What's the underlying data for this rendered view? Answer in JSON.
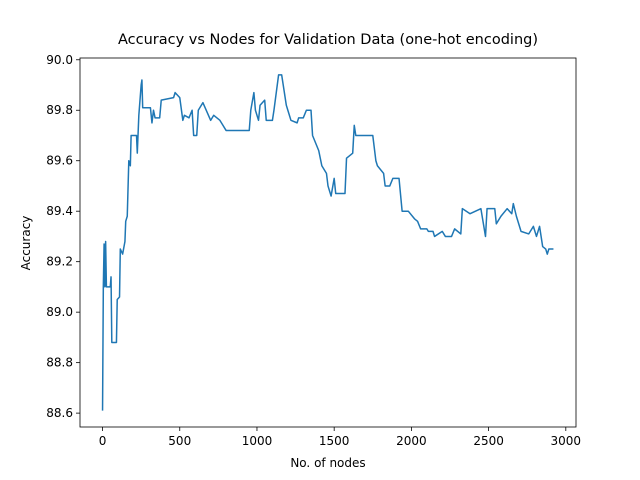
{
  "chart_data": {
    "type": "line",
    "title": "Accuracy vs Nodes for Validation Data (one-hot encoding)",
    "x_label": "No. of nodes",
    "y_label": "Accuracy",
    "xlim": [
      -146,
      3066
    ],
    "ylim": [
      88.545,
      90.007
    ],
    "xticks": [
      0,
      500,
      1000,
      1500,
      2000,
      2500,
      3000
    ],
    "yticks": [
      88.6,
      88.8,
      {
        "value": 89.0,
        "label": "89.0"
      },
      89.2,
      89.4,
      89.6,
      89.8,
      {
        "value": 90.0,
        "label": "90.0"
      }
    ],
    "grid": false,
    "series": [
      {
        "color": "#1f77b4",
        "x": [
          0,
          5,
          10,
          15,
          20,
          25,
          50,
          55,
          60,
          90,
          95,
          110,
          115,
          130,
          145,
          150,
          160,
          170,
          180,
          185,
          220,
          225,
          235,
          250,
          255,
          260,
          310,
          320,
          330,
          340,
          370,
          380,
          460,
          470,
          500,
          520,
          530,
          560,
          580,
          590,
          610,
          620,
          650,
          700,
          720,
          760,
          780,
          800,
          950,
          960,
          980,
          990,
          1010,
          1020,
          1050,
          1060,
          1100,
          1110,
          1140,
          1160,
          1170,
          1190,
          1200,
          1220,
          1260,
          1270,
          1300,
          1320,
          1350,
          1360,
          1400,
          1420,
          1450,
          1460,
          1480,
          1500,
          1510,
          1570,
          1580,
          1620,
          1630,
          1640,
          1750,
          1770,
          1780,
          1820,
          1830,
          1860,
          1880,
          1920,
          1940,
          1980,
          2020,
          2040,
          2060,
          2100,
          2110,
          2140,
          2150,
          2200,
          2220,
          2260,
          2280,
          2320,
          2330,
          2380,
          2450,
          2480,
          2490,
          2540,
          2550,
          2580,
          2620,
          2650,
          2660,
          2680,
          2710,
          2760,
          2790,
          2810,
          2830,
          2850,
          2870,
          2880,
          2890,
          2920
        ],
        "values": [
          88.61,
          89.1,
          89.27,
          89.1,
          89.28,
          89.1,
          89.1,
          89.14,
          88.88,
          88.88,
          89.05,
          89.06,
          89.25,
          89.23,
          89.28,
          89.36,
          89.38,
          89.6,
          89.58,
          89.7,
          89.7,
          89.63,
          89.78,
          89.9,
          89.92,
          89.81,
          89.81,
          89.75,
          89.8,
          89.77,
          89.77,
          89.84,
          89.85,
          89.87,
          89.85,
          89.76,
          89.78,
          89.77,
          89.8,
          89.7,
          89.7,
          89.8,
          89.83,
          89.76,
          89.78,
          89.76,
          89.74,
          89.72,
          89.72,
          89.8,
          89.87,
          89.8,
          89.76,
          89.82,
          89.84,
          89.76,
          89.76,
          89.8,
          89.94,
          89.94,
          89.9,
          89.82,
          89.8,
          89.76,
          89.75,
          89.77,
          89.77,
          89.8,
          89.8,
          89.7,
          89.64,
          89.58,
          89.55,
          89.5,
          89.46,
          89.53,
          89.47,
          89.47,
          89.61,
          89.63,
          89.74,
          89.7,
          89.7,
          89.6,
          89.58,
          89.55,
          89.5,
          89.5,
          89.53,
          89.53,
          89.4,
          89.4,
          89.37,
          89.36,
          89.33,
          89.33,
          89.32,
          89.32,
          89.3,
          89.32,
          89.3,
          89.3,
          89.33,
          89.31,
          89.41,
          89.39,
          89.41,
          89.3,
          89.41,
          89.41,
          89.35,
          89.38,
          89.41,
          89.39,
          89.43,
          89.38,
          89.32,
          89.31,
          89.34,
          89.3,
          89.34,
          89.26,
          89.25,
          89.23,
          89.25,
          89.25
        ]
      }
    ]
  }
}
